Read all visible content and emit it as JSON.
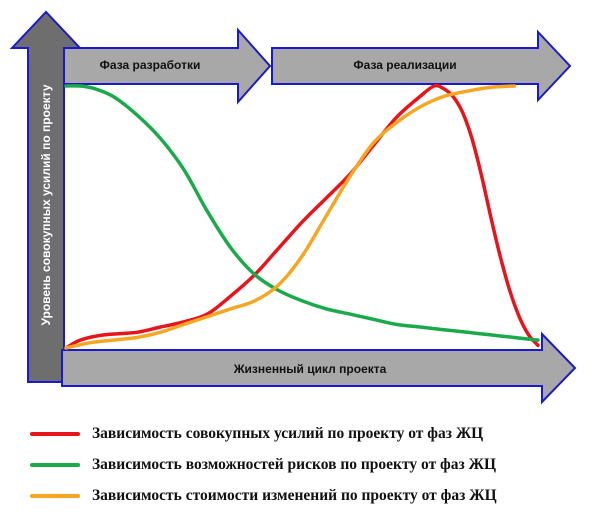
{
  "chart_data": {
    "type": "line",
    "title": "",
    "xlabel": "Жизненный цикл проекта",
    "ylabel": "Уровень совокупных усилий по проекту",
    "xlim": [
      0,
      100
    ],
    "ylim": [
      0,
      100
    ],
    "phases": [
      {
        "label": "Фаза разработки",
        "start": 0,
        "end": 43
      },
      {
        "label": "Фаза реализации",
        "start": 43,
        "end": 100
      }
    ],
    "series": [
      {
        "name": "Зависимость совокупных усилий по проекту от фаз ЖЦ",
        "color": "#e8141c",
        "x": [
          0,
          3,
          8,
          15,
          20,
          25,
          30,
          35,
          40,
          45,
          50,
          55,
          60,
          65,
          70,
          75,
          78,
          80,
          82,
          84,
          86,
          88,
          90,
          92,
          94,
          96,
          98,
          100
        ],
        "y": [
          0,
          3,
          5,
          6,
          8,
          10,
          13,
          20,
          28,
          38,
          48,
          57,
          66,
          77,
          88,
          96,
          100,
          99,
          96,
          90,
          80,
          66,
          50,
          35,
          22,
          12,
          5,
          1
        ]
      },
      {
        "name": "Зависимость возможностей рисков по проекту от фаз ЖЦ",
        "color": "#1aaa4a",
        "x": [
          0,
          3,
          6,
          10,
          15,
          20,
          25,
          30,
          35,
          40,
          45,
          50,
          55,
          60,
          65,
          70,
          75,
          80,
          85,
          90,
          95,
          100
        ],
        "y": [
          100,
          100,
          99,
          96,
          89,
          80,
          68,
          52,
          38,
          28,
          22,
          18,
          15,
          13,
          11,
          9,
          8,
          7,
          6,
          5,
          4,
          3
        ]
      },
      {
        "name": "Зависимость стоимости изменений по проекту от фаз ЖЦ",
        "color": "#f5a623",
        "x": [
          0,
          5,
          10,
          15,
          20,
          25,
          30,
          35,
          40,
          45,
          50,
          55,
          60,
          65,
          70,
          75,
          80,
          85,
          90,
          95
        ],
        "y": [
          0,
          2,
          3,
          4,
          6,
          9,
          12,
          15,
          18,
          24,
          35,
          50,
          65,
          78,
          86,
          92,
          96,
          98,
          99.5,
          100
        ]
      }
    ],
    "legend": [
      "Зависимость совокупных усилий по проекту от фаз ЖЦ",
      "Зависимость возможностей рисков по проекту от фаз ЖЦ",
      "Зависимость стоимости изменений по проекту от фаз ЖЦ"
    ],
    "grid": false
  },
  "colors": {
    "arrow_fill": "#a8a8a8",
    "axis_fill": "#6e6e6e",
    "outline": "#1a1acc"
  }
}
